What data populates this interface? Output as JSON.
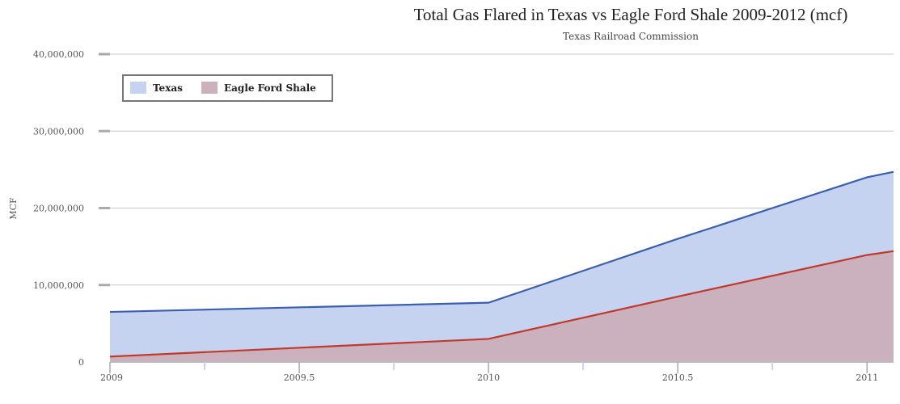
{
  "chart_data": {
    "type": "area",
    "title": "Total Gas Flared in Texas vs Eagle Ford Shale 2009-2012 (mcf)",
    "subtitle": "Texas Railroad Commission",
    "xlabel": "",
    "ylabel": "MCF",
    "x": [
      2009,
      2010,
      2010.5,
      2011,
      2011.07
    ],
    "xlim": [
      2009,
      2011.07
    ],
    "ylim": [
      0,
      40000000
    ],
    "x_ticks": [
      "2009",
      "2009.5",
      "2010",
      "2010.5",
      "2011"
    ],
    "x_tick_values": [
      2009,
      2009.5,
      2010,
      2010.5,
      2011
    ],
    "y_ticks": [
      "0",
      "10,000,000",
      "20,000,000",
      "30,000,000",
      "40,000,000"
    ],
    "y_tick_values": [
      0,
      10000000,
      20000000,
      30000000,
      40000000
    ],
    "grid": true,
    "legend_position": "top-left",
    "series": [
      {
        "name": "Texas",
        "values": [
          6500000,
          7700000,
          16000000,
          24000000,
          24700000
        ],
        "line_color": "#3b5fb0",
        "fill_color": "#c5d3f0"
      },
      {
        "name": "Eagle Ford Shale",
        "values": [
          700000,
          3000000,
          8500000,
          13900000,
          14400000
        ],
        "line_color": "#c0392b",
        "fill_color": "#cbb0bd"
      }
    ]
  }
}
